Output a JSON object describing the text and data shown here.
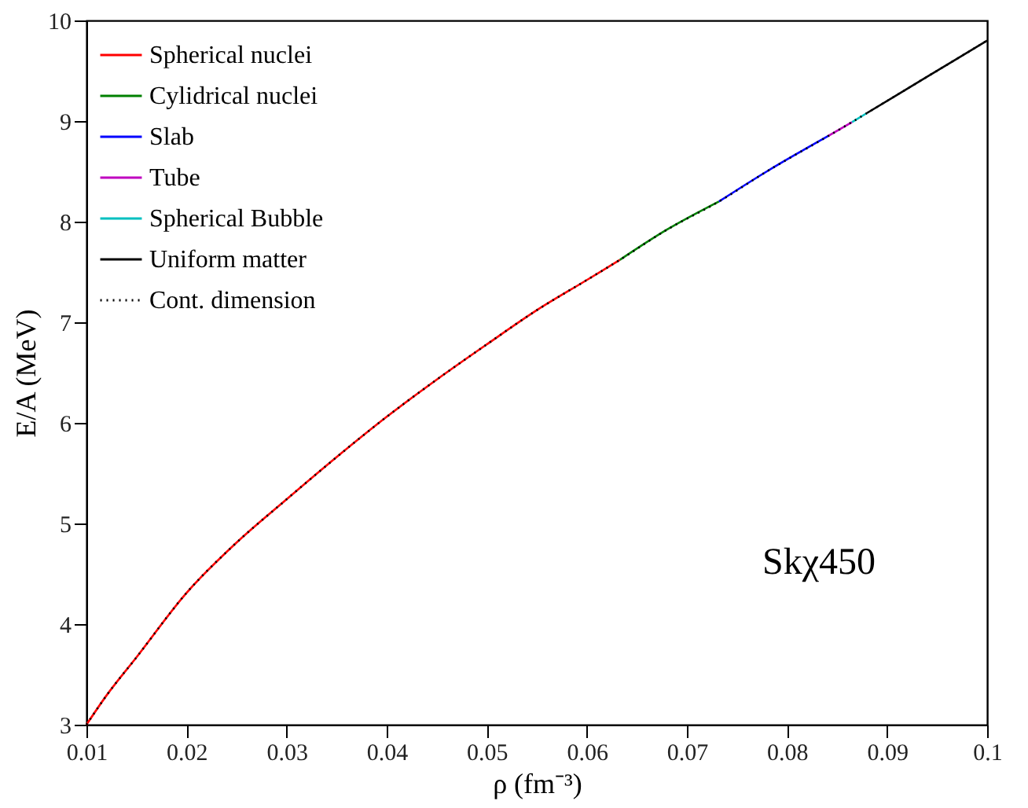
{
  "chart_data": {
    "type": "line",
    "xlabel": "ρ (fm⁻³)",
    "ylabel": "E/A (MeV)",
    "xlim": [
      0.01,
      0.1
    ],
    "ylim": [
      3,
      10
    ],
    "xticks": [
      0.01,
      0.02,
      0.03,
      0.04,
      0.05,
      0.06,
      0.07,
      0.08,
      0.09,
      0.1
    ],
    "yticks": [
      3,
      4,
      5,
      6,
      7,
      8,
      9,
      10
    ],
    "grid": false,
    "legend": "top left",
    "marker": "none",
    "annotations": [
      "Skχ450"
    ],
    "series": [
      {
        "name": "Spherical nuclei",
        "color": "#ff0000",
        "line_style": "solid",
        "x": [
          0.01,
          0.012,
          0.015,
          0.02,
          0.025,
          0.03,
          0.035,
          0.04,
          0.045,
          0.05,
          0.055,
          0.06,
          0.0633
        ],
        "values": [
          3.0,
          3.29,
          3.67,
          4.31,
          4.81,
          5.24,
          5.66,
          6.06,
          6.43,
          6.78,
          7.12,
          7.42,
          7.62
        ]
      },
      {
        "name": "Cylidrical nuclei",
        "color": "#008000",
        "line_style": "solid",
        "x": [
          0.0633,
          0.068,
          0.0732
        ],
        "values": [
          7.62,
          7.92,
          8.2
        ]
      },
      {
        "name": "Slab",
        "color": "#0000ff",
        "line_style": "solid",
        "x": [
          0.0732,
          0.078,
          0.0841
        ],
        "values": [
          8.2,
          8.5,
          8.85
        ]
      },
      {
        "name": "Tube",
        "color": "#bf00bf",
        "line_style": "solid",
        "x": [
          0.0841,
          0.0865
        ],
        "values": [
          8.85,
          8.99
        ]
      },
      {
        "name": "Spherical Bubble",
        "color": "#00bfbf",
        "line_style": "solid",
        "x": [
          0.0865,
          0.088
        ],
        "values": [
          8.99,
          9.08
        ]
      },
      {
        "name": "Uniform matter",
        "color": "#000000",
        "line_style": "solid",
        "x": [
          0.088,
          0.094,
          0.1
        ],
        "values": [
          9.08,
          9.44,
          9.8
        ]
      },
      {
        "name": "Cont. dimension",
        "color": "#000000",
        "line_style": "dotted",
        "x": [
          0.01,
          0.012,
          0.015,
          0.02,
          0.025,
          0.03,
          0.035,
          0.04,
          0.045,
          0.05,
          0.055,
          0.06,
          0.0633,
          0.068,
          0.0732,
          0.078,
          0.0841,
          0.0865,
          0.088,
          0.094,
          0.1
        ],
        "values": [
          3.0,
          3.29,
          3.67,
          4.31,
          4.81,
          5.24,
          5.66,
          6.06,
          6.43,
          6.78,
          7.12,
          7.42,
          7.62,
          7.92,
          8.2,
          8.5,
          8.85,
          8.99,
          9.08,
          9.44,
          9.8
        ]
      }
    ]
  }
}
